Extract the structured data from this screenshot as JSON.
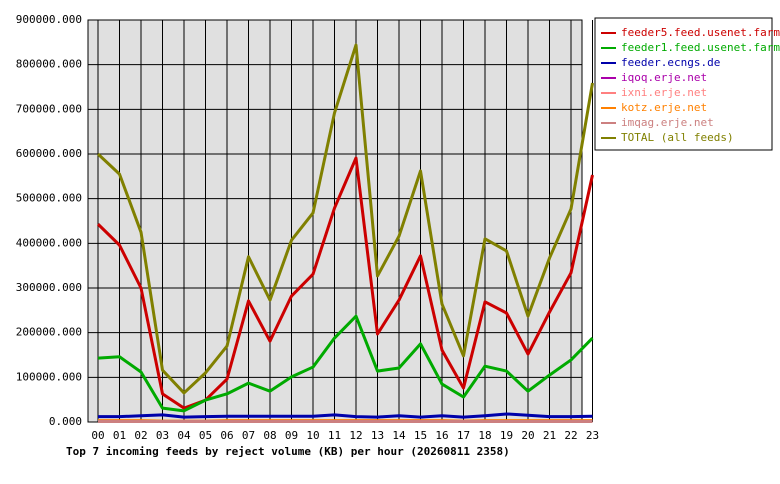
{
  "chart_data": {
    "type": "line",
    "title": "Top 7 incoming feeds by reject volume (KB) per hour (20260811 2358)",
    "categories": [
      "00",
      "01",
      "02",
      "03",
      "04",
      "05",
      "06",
      "07",
      "08",
      "09",
      "10",
      "11",
      "12",
      "13",
      "14",
      "15",
      "16",
      "17",
      "18",
      "19",
      "20",
      "21",
      "22",
      "23"
    ],
    "ylim": [
      0,
      900000
    ],
    "yticks": [
      {
        "value": 0,
        "label": "0.000"
      },
      {
        "value": 100000,
        "label": "100000.000"
      },
      {
        "value": 200000,
        "label": "200000.000"
      },
      {
        "value": 300000,
        "label": "300000.000"
      },
      {
        "value": 400000,
        "label": "400000.000"
      },
      {
        "value": 500000,
        "label": "500000.000"
      },
      {
        "value": 600000,
        "label": "600000.000"
      },
      {
        "value": 700000,
        "label": "700000.000"
      },
      {
        "value": 800000,
        "label": "800000.000"
      },
      {
        "value": 900000,
        "label": "900000.000"
      }
    ],
    "grid": true,
    "legend": "right",
    "series": [
      {
        "name": "feeder5.feed.usenet.farm",
        "color": "#cc0000",
        "values": [
          443000,
          396000,
          300000,
          63000,
          31000,
          49000,
          96000,
          271000,
          181000,
          282000,
          331000,
          479000,
          591000,
          197000,
          273000,
          372000,
          161000,
          76000,
          269000,
          244000,
          152000,
          246000,
          334000,
          553000
        ]
      },
      {
        "name": "feeder1.feed.usenet.farm",
        "color": "#00aa00",
        "values": [
          143000,
          146000,
          112000,
          31000,
          25000,
          49000,
          63000,
          87000,
          69000,
          101000,
          123000,
          188000,
          237000,
          114000,
          121000,
          175000,
          85000,
          56000,
          125000,
          114000,
          69000,
          105000,
          139000,
          188000
        ]
      },
      {
        "name": "feeder.ecngs.de",
        "color": "#0000aa",
        "values": [
          12000,
          12000,
          14000,
          16000,
          11000,
          12000,
          13000,
          13000,
          13000,
          13000,
          13000,
          16000,
          12000,
          11000,
          14000,
          11000,
          14000,
          11000,
          14000,
          18000,
          15000,
          12000,
          12000,
          13000
        ]
      },
      {
        "name": "iqoq.erje.net",
        "color": "#aa00aa",
        "values": [
          2000,
          2000,
          2000,
          1000,
          1000,
          1000,
          2000,
          2000,
          2000,
          2000,
          2000,
          2000,
          2000,
          2000,
          2000,
          2000,
          2000,
          1000,
          2000,
          2000,
          2000,
          2000,
          2000,
          2000
        ]
      },
      {
        "name": "ixni.erje.net",
        "color": "#ff8080",
        "values": [
          1000,
          1000,
          1000,
          1000,
          1000,
          1000,
          1000,
          1000,
          1000,
          1000,
          1000,
          1000,
          1000,
          1000,
          1000,
          1000,
          1000,
          1000,
          1000,
          1000,
          1000,
          1000,
          1000,
          1000
        ]
      },
      {
        "name": "kotz.erje.net",
        "color": "#ff8000",
        "values": [
          3000,
          3000,
          3000,
          2000,
          2000,
          2000,
          3000,
          3000,
          3000,
          3000,
          3000,
          3000,
          3000,
          3000,
          3000,
          3000,
          3000,
          2000,
          3000,
          3000,
          3000,
          3000,
          3000,
          3000
        ]
      },
      {
        "name": "imqag.erje.net",
        "color": "#cc8080",
        "values": [
          1000,
          1000,
          1000,
          1000,
          1000,
          1000,
          1000,
          1000,
          1000,
          1000,
          1000,
          1000,
          1000,
          1000,
          1000,
          1000,
          1000,
          1000,
          1000,
          1000,
          1000,
          1000,
          1000,
          1000
        ]
      },
      {
        "name": "TOTAL (all feeds)",
        "color": "#808000",
        "values": [
          600000,
          555000,
          425000,
          116000,
          65000,
          110000,
          170000,
          370000,
          273000,
          407000,
          468000,
          692000,
          844000,
          327000,
          416000,
          562000,
          264000,
          148000,
          410000,
          383000,
          237000,
          367000,
          477000,
          759000
        ]
      }
    ]
  }
}
